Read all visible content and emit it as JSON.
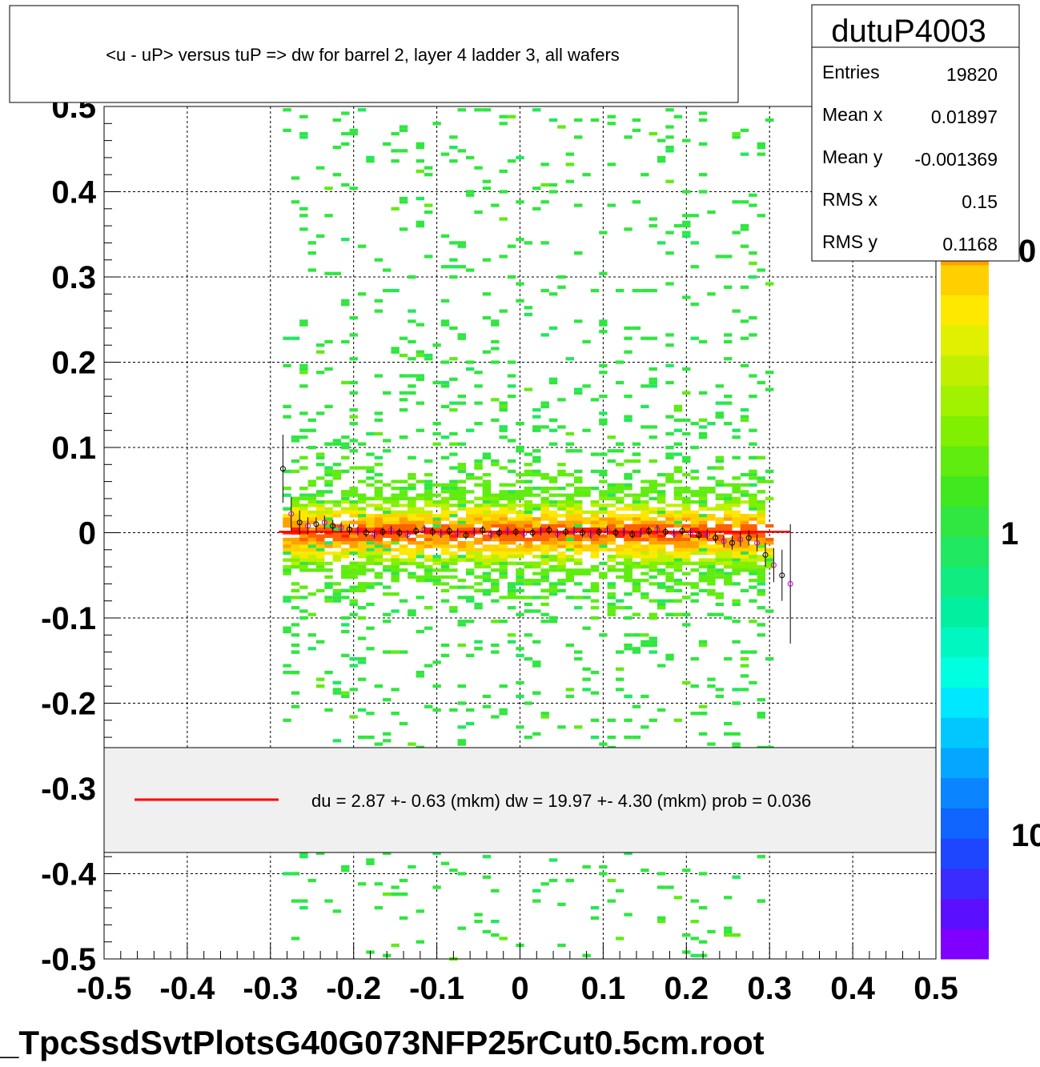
{
  "title": "<u - uP>       versus  tuP =>  dw for barrel 2, layer 4 ladder 3, all wafers",
  "footer": "_TpcSsdSvtPlotsG40G073NFP25rCut0.5cm.root",
  "stats": {
    "name": "dutuP4003",
    "rows": [
      {
        "label": "Entries",
        "value": "19820"
      },
      {
        "label": "Mean x",
        "value": "0.01897"
      },
      {
        "label": "Mean y",
        "value": "-0.001369"
      },
      {
        "label": "RMS x",
        "value": "0.15"
      },
      {
        "label": "RMS y",
        "value": "0.1168"
      }
    ]
  },
  "legend": {
    "entry": "du =    2.87 +-  0.63 (mkm) dw =   19.97 +-  4.30 (mkm) prob = 0.036",
    "line_color": "#ff0000"
  },
  "palette": {
    "labels": [
      "0",
      "1",
      "10"
    ],
    "colors": [
      "#7f00ff",
      "#5a10ff",
      "#3a2bff",
      "#1f46ff",
      "#1064ff",
      "#0a84ff",
      "#05a6ff",
      "#00c8ff",
      "#00e8ff",
      "#00ffe0",
      "#00f8c0",
      "#00f0a0",
      "#10ec80",
      "#20e860",
      "#30e640",
      "#40e820",
      "#60ec10",
      "#80f000",
      "#a0f200",
      "#c0f000",
      "#e0f000",
      "#ffe800",
      "#ffd000",
      "#ffa000"
    ]
  },
  "chart_data": {
    "type": "heatmap",
    "title": "<u - uP>       versus  tuP =>  dw for barrel 2, layer 4 ladder 3, all wafers",
    "xlabel": "",
    "ylabel": "",
    "xlim": [
      -0.5,
      0.5
    ],
    "ylim": [
      -0.5,
      0.5
    ],
    "x_ticks": [
      "-0.5",
      "-0.4",
      "-0.3",
      "-0.2",
      "-0.1",
      "0",
      "0.1",
      "0.2",
      "0.3",
      "0.4",
      "0.5"
    ],
    "y_ticks": [
      "-0.5",
      "-0.4",
      "-0.3",
      "-0.2",
      "-0.1",
      "0",
      "0.1",
      "0.2",
      "0.3",
      "0.4",
      "0.5"
    ],
    "grid": true,
    "occupied_x_range": [
      -0.28,
      0.3
    ],
    "core_y_halfwidth": 0.02,
    "fit_line": {
      "x": [
        -0.29,
        0.325
      ],
      "y": [
        0.001,
        0.001
      ],
      "color": "#ff0000"
    },
    "profile_points": {
      "x": [
        -0.285,
        -0.275,
        -0.265,
        -0.255,
        -0.245,
        -0.235,
        -0.225,
        -0.215,
        -0.205,
        -0.195,
        -0.185,
        -0.175,
        -0.165,
        -0.155,
        -0.145,
        -0.135,
        -0.125,
        -0.115,
        -0.105,
        -0.095,
        -0.085,
        -0.075,
        -0.065,
        -0.055,
        -0.045,
        -0.035,
        -0.025,
        -0.015,
        -0.005,
        0.005,
        0.015,
        0.025,
        0.035,
        0.045,
        0.055,
        0.065,
        0.075,
        0.085,
        0.095,
        0.105,
        0.115,
        0.125,
        0.135,
        0.145,
        0.155,
        0.165,
        0.175,
        0.185,
        0.195,
        0.205,
        0.215,
        0.225,
        0.235,
        0.245,
        0.255,
        0.265,
        0.275,
        0.285,
        0.295,
        0.305,
        0.315,
        0.325
      ],
      "y": [
        0.075,
        0.022,
        0.012,
        0.008,
        0.01,
        0.012,
        0.008,
        0.006,
        0.004,
        0.002,
        0.0,
        -0.002,
        0.001,
        0.003,
        0.0,
        -0.002,
        0.002,
        0.004,
        0.001,
        -0.001,
        0.002,
        0.0,
        -0.003,
        0.001,
        0.003,
        -0.002,
        0.0,
        0.002,
        0.001,
        -0.001,
        0.0,
        0.002,
        0.003,
        -0.001,
        0.001,
        0.002,
        0.0,
        -0.002,
        0.001,
        0.003,
        0.0,
        0.001,
        -0.002,
        0.0,
        0.002,
        0.004,
        0.001,
        -0.001,
        0.002,
        0.0,
        -0.003,
        -0.002,
        -0.006,
        -0.01,
        -0.012,
        -0.008,
        -0.006,
        -0.012,
        -0.026,
        -0.038,
        -0.05,
        -0.06
      ],
      "err": [
        0.04,
        0.02,
        0.014,
        0.01,
        0.008,
        0.008,
        0.007,
        0.006,
        0.006,
        0.005,
        0.005,
        0.005,
        0.005,
        0.005,
        0.005,
        0.005,
        0.005,
        0.005,
        0.005,
        0.005,
        0.005,
        0.005,
        0.005,
        0.005,
        0.005,
        0.005,
        0.005,
        0.005,
        0.005,
        0.005,
        0.005,
        0.005,
        0.005,
        0.005,
        0.005,
        0.005,
        0.005,
        0.005,
        0.005,
        0.005,
        0.005,
        0.005,
        0.005,
        0.005,
        0.005,
        0.005,
        0.005,
        0.005,
        0.005,
        0.005,
        0.005,
        0.006,
        0.006,
        0.007,
        0.008,
        0.008,
        0.009,
        0.01,
        0.014,
        0.02,
        0.03,
        0.07
      ]
    }
  }
}
